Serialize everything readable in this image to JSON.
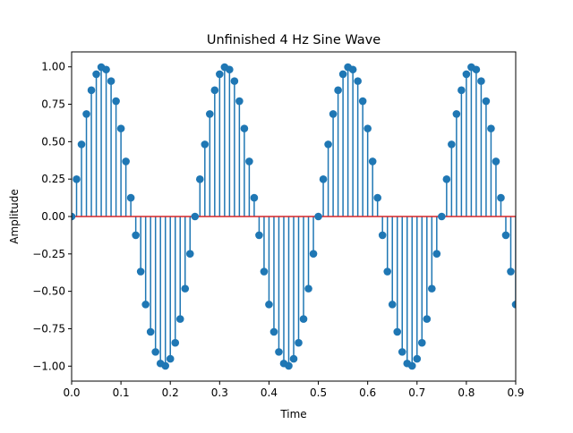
{
  "chart_data": {
    "type": "stem",
    "title": "Unfinished 4 Hz Sine Wave",
    "xlabel": "Time",
    "ylabel": "Amplitude",
    "xlim": [
      0,
      0.9
    ],
    "ylim": [
      -1.1,
      1.1
    ],
    "xticks": [
      "0.0",
      "0.1",
      "0.2",
      "0.3",
      "0.4",
      "0.5",
      "0.6",
      "0.7",
      "0.8",
      "0.9"
    ],
    "yticks": [
      "−1.00",
      "−0.75",
      "−0.50",
      "−0.25",
      "0.00",
      "0.25",
      "0.50",
      "0.75",
      "1.00"
    ],
    "grid": false,
    "legend": "none",
    "series": [
      {
        "x": [
          0.0,
          0.01,
          0.02,
          0.03,
          0.04,
          0.05,
          0.06,
          0.07,
          0.08,
          0.09,
          0.1,
          0.11,
          0.12,
          0.13,
          0.14,
          0.15,
          0.16,
          0.17,
          0.18,
          0.19,
          0.2,
          0.21,
          0.22,
          0.23,
          0.24,
          0.25,
          0.26,
          0.27,
          0.28,
          0.29,
          0.3,
          0.31,
          0.32,
          0.33,
          0.34,
          0.35,
          0.36,
          0.37,
          0.38,
          0.39,
          0.4,
          0.41,
          0.42,
          0.43,
          0.44,
          0.45,
          0.46,
          0.47,
          0.48,
          0.49,
          0.5,
          0.51,
          0.52,
          0.53,
          0.54,
          0.55,
          0.56,
          0.57,
          0.58,
          0.59,
          0.6,
          0.61,
          0.62,
          0.63,
          0.64,
          0.65,
          0.66,
          0.67,
          0.68,
          0.69,
          0.7,
          0.71,
          0.72,
          0.73,
          0.74,
          0.75,
          0.76,
          0.77,
          0.78,
          0.79,
          0.8,
          0.81,
          0.82,
          0.83,
          0.84,
          0.85,
          0.86,
          0.87,
          0.88,
          0.89,
          0.9
        ],
        "y": [
          0.0,
          0.249,
          0.482,
          0.685,
          0.844,
          0.951,
          0.998,
          0.982,
          0.905,
          0.771,
          0.588,
          0.368,
          0.125,
          -0.125,
          -0.368,
          -0.588,
          -0.771,
          -0.905,
          -0.982,
          -0.998,
          -0.951,
          -0.844,
          -0.685,
          -0.482,
          -0.249,
          0.0,
          0.249,
          0.482,
          0.685,
          0.844,
          0.951,
          0.998,
          0.982,
          0.905,
          0.771,
          0.588,
          0.368,
          0.125,
          -0.125,
          -0.368,
          -0.588,
          -0.771,
          -0.905,
          -0.982,
          -0.998,
          -0.951,
          -0.844,
          -0.685,
          -0.482,
          -0.249,
          0.0,
          0.249,
          0.482,
          0.685,
          0.844,
          0.951,
          0.998,
          0.982,
          0.905,
          0.771,
          0.588,
          0.368,
          0.125,
          -0.125,
          -0.368,
          -0.588,
          -0.771,
          -0.905,
          -0.982,
          -0.998,
          -0.951,
          -0.844,
          -0.685,
          -0.482,
          -0.249,
          0.0,
          0.249,
          0.482,
          0.685,
          0.844,
          0.951,
          0.998,
          0.982,
          0.905,
          0.771,
          0.588,
          0.368,
          0.125,
          -0.125,
          -0.368,
          -0.588
        ]
      }
    ],
    "colors": {
      "stem": "#1f77b4",
      "marker": "#1f77b4",
      "baseline": "#d62728"
    }
  }
}
